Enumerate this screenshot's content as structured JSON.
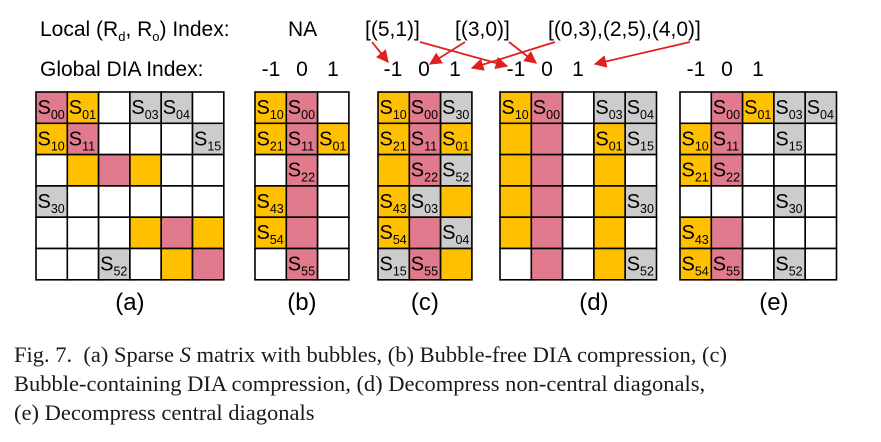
{
  "header": {
    "local_label_pre": "Local (R",
    "local_sub_d": "d",
    "local_label_mid": ", R",
    "local_sub_o": "o",
    "local_label_post": ") Index:",
    "global_label": "Global DIA Index:",
    "local_na": "NA",
    "local_c_idx1": "[(5,1)]",
    "local_c_idx2": "[(3,0)]",
    "local_e_idx": "[(0,3),(2,5),(4,0)]",
    "dia_ticks": [
      "-1",
      "0",
      "1"
    ]
  },
  "colors": {
    "pink": "#e07a8c",
    "yellow": "#ffc000",
    "gray": "#cccccc",
    "white": "#ffffff",
    "grid": "#000000",
    "arrow": "#e02020"
  },
  "panels": [
    {
      "label": "(a)",
      "rows": 6,
      "cols": 6,
      "cells": [
        [
          "P",
          "Y",
          "W",
          "G",
          "G",
          "W"
        ],
        [
          "Y",
          "P",
          "W",
          "W",
          "W",
          "G"
        ],
        [
          "W",
          "Y",
          "P",
          "Y",
          "W",
          "W"
        ],
        [
          "G",
          "W",
          "W",
          "W",
          "W",
          "W"
        ],
        [
          "W",
          "W",
          "W",
          "Y",
          "P",
          "Y"
        ],
        [
          "W",
          "W",
          "G",
          "W",
          "Y",
          "P"
        ]
      ],
      "texts": [
        {
          "r": 0,
          "c": 0,
          "base": "S",
          "sub": "00"
        },
        {
          "r": 0,
          "c": 1,
          "base": "S",
          "sub": "01"
        },
        {
          "r": 0,
          "c": 3,
          "base": "S",
          "sub": "03"
        },
        {
          "r": 0,
          "c": 4,
          "base": "S",
          "sub": "04"
        },
        {
          "r": 1,
          "c": 0,
          "base": "S",
          "sub": "10"
        },
        {
          "r": 1,
          "c": 1,
          "base": "S",
          "sub": "11"
        },
        {
          "r": 1,
          "c": 5,
          "base": "S",
          "sub": "15"
        },
        {
          "r": 3,
          "c": 0,
          "base": "S",
          "sub": "30"
        },
        {
          "r": 5,
          "c": 2,
          "base": "S",
          "sub": "52"
        }
      ]
    },
    {
      "label": "(b)",
      "rows": 6,
      "cols": 3,
      "cells": [
        [
          "Y",
          "P",
          "W"
        ],
        [
          "Y",
          "P",
          "Y"
        ],
        [
          "W",
          "P",
          "W"
        ],
        [
          "Y",
          "P",
          "W"
        ],
        [
          "Y",
          "P",
          "W"
        ],
        [
          "W",
          "P",
          "W"
        ]
      ],
      "texts": [
        {
          "r": 0,
          "c": 0,
          "base": "S",
          "sub": "10"
        },
        {
          "r": 0,
          "c": 1,
          "base": "S",
          "sub": "00"
        },
        {
          "r": 1,
          "c": 0,
          "base": "S",
          "sub": "21"
        },
        {
          "r": 1,
          "c": 1,
          "base": "S",
          "sub": "11"
        },
        {
          "r": 1,
          "c": 2,
          "base": "S",
          "sub": "01"
        },
        {
          "r": 2,
          "c": 1,
          "base": "S",
          "sub": "22"
        },
        {
          "r": 3,
          "c": 0,
          "base": "S",
          "sub": "43"
        },
        {
          "r": 4,
          "c": 0,
          "base": "S",
          "sub": "54"
        },
        {
          "r": 5,
          "c": 1,
          "base": "S",
          "sub": "55"
        }
      ]
    },
    {
      "label": "(c)",
      "rows": 6,
      "cols": 3,
      "cells": [
        [
          "Y",
          "P",
          "G"
        ],
        [
          "Y",
          "P",
          "Y"
        ],
        [
          "Y",
          "P",
          "G"
        ],
        [
          "Y",
          "G",
          "Y"
        ],
        [
          "Y",
          "P",
          "G"
        ],
        [
          "G",
          "P",
          "Y"
        ]
      ],
      "texts": [
        {
          "r": 0,
          "c": 0,
          "base": "S",
          "sub": "10"
        },
        {
          "r": 0,
          "c": 1,
          "base": "S",
          "sub": "00"
        },
        {
          "r": 0,
          "c": 2,
          "base": "S",
          "sub": "30"
        },
        {
          "r": 1,
          "c": 0,
          "base": "S",
          "sub": "21"
        },
        {
          "r": 1,
          "c": 1,
          "base": "S",
          "sub": "11"
        },
        {
          "r": 1,
          "c": 2,
          "base": "S",
          "sub": "01"
        },
        {
          "r": 2,
          "c": 1,
          "base": "S",
          "sub": "22"
        },
        {
          "r": 2,
          "c": 2,
          "base": "S",
          "sub": "52"
        },
        {
          "r": 3,
          "c": 0,
          "base": "S",
          "sub": "43"
        },
        {
          "r": 3,
          "c": 1,
          "base": "S",
          "sub": "03"
        },
        {
          "r": 4,
          "c": 0,
          "base": "S",
          "sub": "54"
        },
        {
          "r": 4,
          "c": 2,
          "base": "S",
          "sub": "04"
        },
        {
          "r": 5,
          "c": 0,
          "base": "S",
          "sub": "15"
        },
        {
          "r": 5,
          "c": 1,
          "base": "S",
          "sub": "55"
        }
      ]
    },
    {
      "label": "(d)",
      "rows": 6,
      "cols": 6,
      "cells": [
        [
          "Y",
          "P",
          "W",
          "G",
          "G",
          "N"
        ],
        [
          "Y",
          "P",
          "W",
          "Y",
          "G",
          "N"
        ],
        [
          "Y",
          "P",
          "W",
          "Y",
          "W",
          "N"
        ],
        [
          "Y",
          "P",
          "W",
          "Y",
          "G",
          "N"
        ],
        [
          "Y",
          "P",
          "W",
          "Y",
          "W",
          "N"
        ],
        [
          "W",
          "P",
          "W",
          "Y",
          "G",
          "N"
        ]
      ],
      "texts": [
        {
          "r": 0,
          "c": 0,
          "base": "S",
          "sub": "10"
        },
        {
          "r": 0,
          "c": 1,
          "base": "S",
          "sub": "00"
        },
        {
          "r": 0,
          "c": 3,
          "base": "S",
          "sub": "03"
        },
        {
          "r": 0,
          "c": 4,
          "base": "S",
          "sub": "04"
        },
        {
          "r": 1,
          "c": 3,
          "base": "S",
          "sub": "01"
        },
        {
          "r": 1,
          "c": 4,
          "base": "S",
          "sub": "15"
        },
        {
          "r": 3,
          "c": 4,
          "base": "S",
          "sub": "30"
        },
        {
          "r": 5,
          "c": 4,
          "base": "S",
          "sub": "52"
        }
      ]
    },
    {
      "label": "(e)",
      "rows": 6,
      "cols": 6,
      "cells": [
        [
          "W",
          "P",
          "Y",
          "G",
          "G",
          "N"
        ],
        [
          "Y",
          "P",
          "W",
          "G",
          "W",
          "N"
        ],
        [
          "Y",
          "P",
          "W",
          "W",
          "W",
          "N"
        ],
        [
          "W",
          "W",
          "W",
          "G",
          "W",
          "N"
        ],
        [
          "Y",
          "P",
          "W",
          "W",
          "W",
          "N"
        ],
        [
          "Y",
          "P",
          "W",
          "G",
          "W",
          "N"
        ]
      ],
      "texts": [
        {
          "r": 0,
          "c": 1,
          "base": "S",
          "sub": "00"
        },
        {
          "r": 0,
          "c": 2,
          "base": "S",
          "sub": "01"
        },
        {
          "r": 0,
          "c": 3,
          "base": "S",
          "sub": "03"
        },
        {
          "r": 0,
          "c": 4,
          "base": "S",
          "sub": "04"
        },
        {
          "r": 1,
          "c": 0,
          "base": "S",
          "sub": "10"
        },
        {
          "r": 1,
          "c": 1,
          "base": "S",
          "sub": "11"
        },
        {
          "r": 1,
          "c": 3,
          "base": "S",
          "sub": "15"
        },
        {
          "r": 2,
          "c": 0,
          "base": "S",
          "sub": "21"
        },
        {
          "r": 2,
          "c": 1,
          "base": "S",
          "sub": "22"
        },
        {
          "r": 3,
          "c": 3,
          "base": "S",
          "sub": "30"
        },
        {
          "r": 4,
          "c": 0,
          "base": "S",
          "sub": "43"
        },
        {
          "r": 5,
          "c": 0,
          "base": "S",
          "sub": "54"
        },
        {
          "r": 5,
          "c": 1,
          "base": "S",
          "sub": "55"
        },
        {
          "r": 5,
          "c": 3,
          "base": "S",
          "sub": "52"
        }
      ]
    }
  ],
  "caption": {
    "fig": "Fig. 7.",
    "part1": "(a) Sparse ",
    "part1_italic": "S",
    "part1_rest": " matrix with bubbles, (b) Bubble-free DIA compression, (c)",
    "line2": "Bubble-containing DIA compression, (d) Decompress non-central diagonals,",
    "line3": "(e) Decompress central diagonals"
  }
}
